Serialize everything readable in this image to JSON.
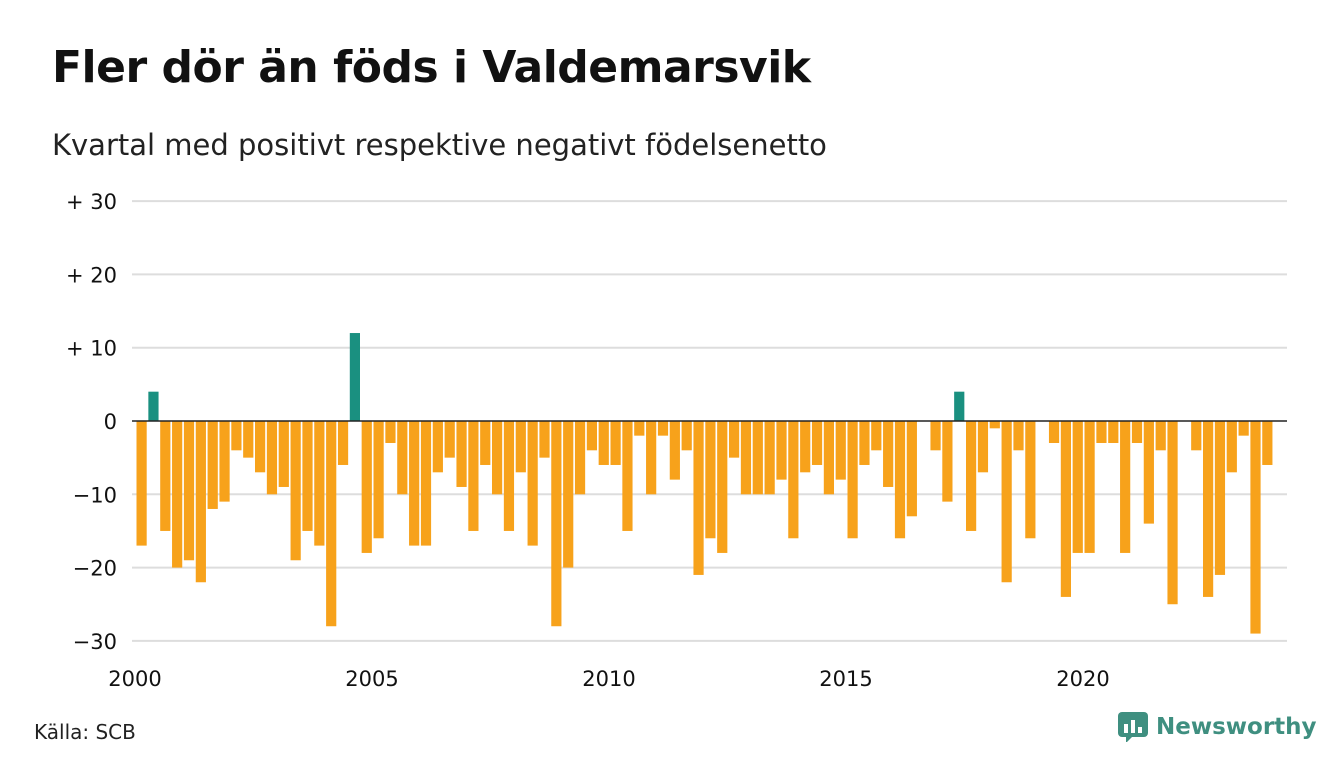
{
  "title": "Fler dör än föds i Valdemarsvik",
  "subtitle": "Kvartal med positivt respektive negativt födelsenetto",
  "source": "Källa: SCB",
  "brand": "Newsworthy",
  "colors": {
    "positive": "#1a9080",
    "negative": "#f7a21b",
    "grid": "#dddddd",
    "baseline": "#222222",
    "brand": "#3f8f80"
  },
  "chart_data": {
    "type": "bar",
    "title": "Fler dör än föds i Valdemarsvik",
    "subtitle": "Kvartal med positivt respektive negativt födelsenetto",
    "xlabel": "",
    "ylabel": "",
    "ylim": [
      -30,
      30
    ],
    "xlim": [
      2000,
      2024.5
    ],
    "grid": true,
    "y_ticks": [
      30,
      20,
      10,
      0,
      -10,
      -20,
      -30
    ],
    "y_tick_labels": [
      "+ 30",
      "+ 20",
      "+ 10",
      "0",
      "−10",
      "−20",
      "−30"
    ],
    "x_ticks": [
      2000,
      2005,
      2010,
      2015,
      2020
    ],
    "x_tick_labels": [
      "2000",
      "2005",
      "2010",
      "2015",
      "2020"
    ],
    "start": "2000 Q1",
    "values": [
      -17,
      4,
      -15,
      -20,
      -19,
      -22,
      -12,
      -11,
      -4,
      -5,
      -7,
      -10,
      -9,
      -19,
      -15,
      -17,
      -28,
      -6,
      12,
      -18,
      -16,
      -3,
      -10,
      -17,
      -17,
      -7,
      -5,
      -9,
      -15,
      -6,
      -10,
      -15,
      -7,
      -17,
      -5,
      -28,
      -20,
      -10,
      -4,
      -6,
      -6,
      -15,
      -2,
      -10,
      -2,
      -8,
      -4,
      -21,
      -16,
      -18,
      -5,
      -10,
      -10,
      -10,
      -8,
      -16,
      -7,
      -6,
      -10,
      -8,
      -16,
      -6,
      -4,
      -9,
      -16,
      -13,
      0,
      -4,
      -11,
      4,
      -15,
      -7,
      -1,
      -22,
      -4,
      -16,
      0,
      -3,
      -24,
      -18,
      -18,
      -3,
      -3,
      -18,
      -3,
      -14,
      -4,
      -25,
      0,
      -4,
      -24,
      -21,
      -7,
      -2,
      -29,
      -6
    ]
  }
}
